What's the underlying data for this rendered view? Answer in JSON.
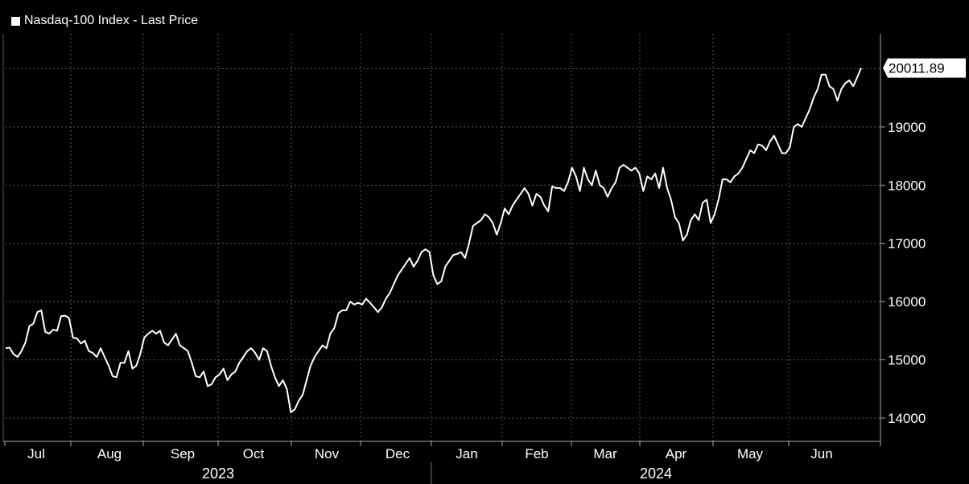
{
  "legend": {
    "label": "Nasdaq-100 Index - Last Price",
    "color": "#ffffff"
  },
  "last_price_label": "20011.89",
  "chart_data": {
    "type": "line",
    "title": "",
    "xlabel": "",
    "ylabel": "",
    "ylim": [
      13600,
      20600
    ],
    "y_ticks": [
      14000,
      15000,
      16000,
      17000,
      18000,
      19000
    ],
    "y_tick_labels": [
      "14000",
      "15000",
      "16000",
      "17000",
      "18000",
      "19000"
    ],
    "x_month_labels": [
      "Jul",
      "Aug",
      "Sep",
      "Oct",
      "Nov",
      "Dec",
      "Jan",
      "Feb",
      "Mar",
      "Apr",
      "May",
      "Jun"
    ],
    "x_year_labels": [
      "2023",
      "2024"
    ],
    "grid": true,
    "legend_position": "top-left",
    "series": [
      {
        "name": "Nasdaq-100 Index - Last Price",
        "color": "#ffffff",
        "last_value": 20011.89,
        "values": [
          15200,
          15210,
          15100,
          15050,
          15150,
          15300,
          15580,
          15620,
          15820,
          15850,
          15480,
          15450,
          15520,
          15500,
          15750,
          15760,
          15720,
          15380,
          15370,
          15280,
          15330,
          15150,
          15120,
          15050,
          15200,
          15050,
          14900,
          14720,
          14700,
          14950,
          14950,
          15150,
          14850,
          14900,
          15100,
          15380,
          15450,
          15500,
          15450,
          15500,
          15300,
          15250,
          15350,
          15450,
          15250,
          15200,
          15150,
          14950,
          14720,
          14700,
          14800,
          14550,
          14580,
          14700,
          14750,
          14850,
          14650,
          14750,
          14800,
          14950,
          15050,
          15150,
          15200,
          15120,
          15000,
          15200,
          15150,
          14900,
          14700,
          14550,
          14650,
          14500,
          14100,
          14150,
          14300,
          14400,
          14650,
          14900,
          15050,
          15150,
          15250,
          15200,
          15450,
          15550,
          15800,
          15850,
          15850,
          16000,
          15950,
          15980,
          15950,
          16050,
          15980,
          15900,
          15820,
          15900,
          16050,
          16150,
          16300,
          16450,
          16550,
          16650,
          16750,
          16600,
          16700,
          16850,
          16900,
          16850,
          16450,
          16300,
          16350,
          16600,
          16700,
          16800,
          16820,
          16850,
          16750,
          17000,
          17300,
          17350,
          17400,
          17500,
          17450,
          17350,
          17150,
          17350,
          17600,
          17500,
          17650,
          17750,
          17850,
          17950,
          17850,
          17650,
          17850,
          17800,
          17650,
          17550,
          17980,
          17950,
          17950,
          17900,
          18050,
          18300,
          18150,
          17900,
          18300,
          18100,
          18000,
          18250,
          18000,
          17950,
          17800,
          17950,
          18050,
          18300,
          18350,
          18300,
          18250,
          18300,
          18200,
          17900,
          18150,
          18100,
          18200,
          17950,
          18300,
          17950,
          17750,
          17450,
          17350,
          17050,
          17150,
          17400,
          17500,
          17400,
          17700,
          17750,
          17350,
          17500,
          17750,
          18100,
          18100,
          18050,
          18150,
          18200,
          18300,
          18450,
          18600,
          18550,
          18700,
          18680,
          18600,
          18750,
          18850,
          18700,
          18550,
          18550,
          18650,
          19000,
          19050,
          19000,
          19150,
          19300,
          19500,
          19650,
          19900,
          19900,
          19700,
          19650,
          19450,
          19650,
          19750,
          19800,
          19700,
          19850,
          20011.89
        ]
      }
    ]
  }
}
